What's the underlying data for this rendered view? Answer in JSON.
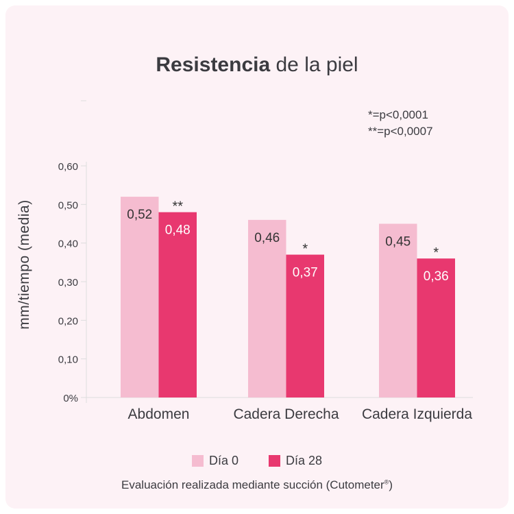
{
  "chart_data": {
    "type": "bar",
    "title_bold": "Resistencia",
    "title_rest": " de la piel",
    "ylabel": "mm/tiempo (media)",
    "xlabel": "",
    "ylim": [
      0,
      0.6
    ],
    "yticks": [
      "0%",
      "0,10",
      "0,20",
      "0,30",
      "0,40",
      "0,50",
      "0,60"
    ],
    "categories": [
      "Abdomen",
      "Cadera Derecha",
      "Cadera Izquierda"
    ],
    "series": [
      {
        "name": "Día 0",
        "color": "#f5bcd0",
        "values": [
          0.52,
          0.46,
          0.45
        ],
        "labels": [
          "0,52",
          "0,46",
          "0,45"
        ]
      },
      {
        "name": "Día 28",
        "color": "#e8386f",
        "values": [
          0.48,
          0.37,
          0.36
        ],
        "labels": [
          "0,48",
          "0,37",
          "0,36"
        ]
      }
    ],
    "significance": [
      "**",
      "*",
      "*"
    ],
    "notes": [
      "*=p<0,0001",
      "**=p<0,0007"
    ],
    "legend": "bottom-center",
    "grid": false
  },
  "footnote": "Evaluación realizada mediante succión (Cutometer",
  "footnote_sup": "®",
  "footnote_end": ")"
}
